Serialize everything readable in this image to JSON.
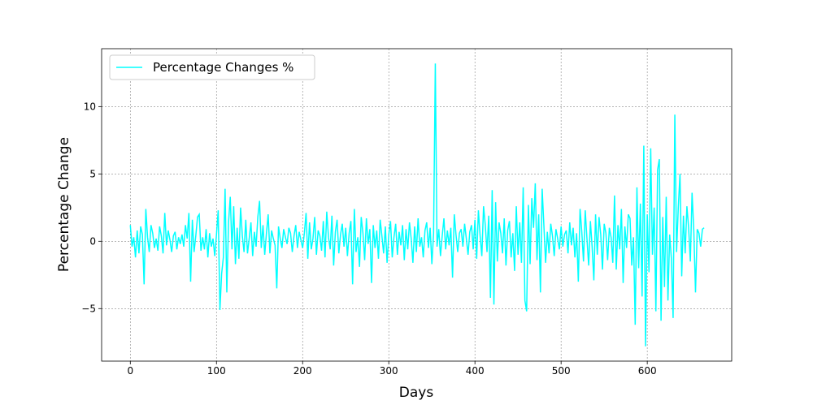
{
  "chart_data": {
    "type": "line",
    "x_label": "Days",
    "y_label": "Percentage Change",
    "legend": "upper left",
    "grid": true,
    "xlim": [
      -33.3,
      698
    ],
    "ylim": [
      -8.9,
      14.3
    ],
    "xticks": [
      0,
      100,
      200,
      300,
      400,
      500,
      600
    ],
    "yticks": [
      {
        "value": -5,
        "label": "−5"
      },
      0,
      5,
      10
    ],
    "x": [
      0,
      2,
      4,
      6,
      8,
      10,
      12,
      14,
      16,
      18,
      20,
      22,
      24,
      26,
      28,
      30,
      32,
      34,
      36,
      38,
      40,
      42,
      44,
      46,
      48,
      50,
      52,
      54,
      56,
      58,
      60,
      62,
      64,
      66,
      68,
      70,
      72,
      74,
      76,
      78,
      80,
      82,
      84,
      86,
      88,
      90,
      92,
      94,
      96,
      98,
      100,
      102,
      104,
      106,
      108,
      110,
      112,
      114,
      116,
      118,
      120,
      122,
      124,
      126,
      128,
      130,
      132,
      134,
      136,
      138,
      140,
      142,
      144,
      146,
      148,
      150,
      152,
      154,
      156,
      158,
      160,
      162,
      164,
      166,
      168,
      170,
      172,
      174,
      176,
      178,
      180,
      182,
      184,
      186,
      188,
      190,
      192,
      194,
      196,
      198,
      200,
      202,
      204,
      206,
      208,
      210,
      212,
      214,
      216,
      218,
      220,
      222,
      224,
      226,
      228,
      230,
      232,
      234,
      236,
      238,
      240,
      242,
      244,
      246,
      248,
      250,
      252,
      254,
      256,
      258,
      260,
      262,
      264,
      266,
      268,
      270,
      272,
      274,
      276,
      278,
      280,
      282,
      284,
      286,
      288,
      290,
      292,
      294,
      296,
      298,
      300,
      302,
      304,
      306,
      308,
      310,
      312,
      314,
      316,
      318,
      320,
      322,
      324,
      326,
      328,
      330,
      332,
      334,
      336,
      338,
      340,
      342,
      344,
      346,
      348,
      350,
      352,
      354,
      356,
      358,
      360,
      362,
      364,
      366,
      368,
      370,
      372,
      374,
      376,
      378,
      380,
      382,
      384,
      386,
      388,
      390,
      392,
      394,
      396,
      398,
      400,
      402,
      404,
      406,
      408,
      410,
      412,
      414,
      416,
      418,
      420,
      422,
      424,
      426,
      428,
      430,
      432,
      434,
      436,
      438,
      440,
      442,
      444,
      446,
      448,
      450,
      452,
      454,
      456,
      458,
      460,
      462,
      464,
      466,
      468,
      470,
      472,
      474,
      476,
      478,
      480,
      482,
      484,
      486,
      488,
      490,
      492,
      494,
      496,
      498,
      500,
      502,
      504,
      506,
      508,
      510,
      512,
      514,
      516,
      518,
      520,
      522,
      524,
      526,
      528,
      530,
      532,
      534,
      536,
      538,
      540,
      542,
      544,
      546,
      548,
      550,
      552,
      554,
      556,
      558,
      560,
      562,
      564,
      566,
      568,
      570,
      572,
      574,
      576,
      578,
      580,
      582,
      584,
      586,
      588,
      590,
      592,
      594,
      596,
      598,
      600,
      602,
      604,
      606,
      608,
      610,
      612,
      614,
      616,
      618,
      620,
      622,
      624,
      626,
      628,
      630,
      632,
      634,
      636,
      638,
      640,
      642,
      644,
      646,
      648,
      650,
      652,
      654,
      656,
      658,
      660,
      662,
      664,
      666
    ],
    "series": [
      {
        "name": "Percentage Changes %",
        "color": "#00ffff",
        "values": [
          1.2,
          -0.4,
          0.3,
          -1.2,
          0.8,
          -0.9,
          1.1,
          0.5,
          -3.2,
          2.4,
          0.3,
          -0.8,
          1.2,
          0.6,
          -0.5,
          0.2,
          -0.7,
          1.1,
          0.4,
          -0.9,
          2.1,
          -0.3,
          0.8,
          0.1,
          -0.8,
          0.4,
          0.7,
          -0.6,
          0.3,
          -0.2,
          0.5,
          -0.4,
          1.2,
          0.2,
          2.1,
          -3.0,
          1.6,
          -0.8,
          0.4,
          1.8,
          2.0,
          -0.7,
          0.3,
          -0.6,
          0.9,
          -1.2,
          0.6,
          -0.4,
          0.2,
          -1.1,
          0.5,
          2.3,
          -5.1,
          -2.4,
          -1.2,
          3.9,
          -3.8,
          1.4,
          3.3,
          -0.6,
          2.6,
          -1.7,
          1.0,
          -1.3,
          2.5,
          0.4,
          -0.8,
          1.6,
          -0.9,
          0.2,
          1.4,
          -1.1,
          0.7,
          -0.4,
          1.8,
          3.0,
          -0.5,
          1.2,
          -1.0,
          0.6,
          2.0,
          -0.9,
          0.8,
          0.2,
          -0.3,
          -3.5,
          1.1,
          0.2,
          -0.5,
          0.9,
          0.3,
          -0.2,
          1.0,
          0.6,
          -0.8,
          0.4,
          1.2,
          -0.5,
          0.7,
          0.1,
          -0.5,
          0.6,
          2.1,
          -1.3,
          1.4,
          -0.6,
          0.2,
          1.8,
          -1.0,
          0.8,
          0.4,
          -0.7,
          1.5,
          -1.2,
          2.2,
          0.3,
          -0.6,
          1.9,
          -1.8,
          0.7,
          1.6,
          -0.9,
          0.5,
          1.3,
          -0.4,
          1.0,
          -1.1,
          0.6,
          1.5,
          -3.2,
          2.4,
          -0.8,
          0.3,
          -1.9,
          1.8,
          0.6,
          -1.4,
          1.7,
          -0.2,
          0.9,
          -3.1,
          1.2,
          -0.5,
          0.8,
          -1.3,
          1.6,
          0.4,
          -0.9,
          1.1,
          -1.6,
          0.5,
          1.5,
          -1.2,
          0.3,
          1.3,
          -1.0,
          0.7,
          -0.3,
          1.2,
          -1.4,
          0.9,
          -0.6,
          1.4,
          0.2,
          -1.6,
          1.1,
          -0.8,
          1.7,
          -0.4,
          0.3,
          -1.2,
          0.8,
          1.4,
          -0.5,
          1.0,
          -1.7,
          0.6,
          13.2,
          -0.4,
          0.9,
          -1.1,
          0.4,
          1.7,
          -0.6,
          0.8,
          -0.3,
          1.0,
          -2.7,
          2.0,
          0.5,
          -0.8,
          0.6,
          0.9,
          -0.4,
          1.3,
          0.2,
          -1.0,
          0.7,
          1.2,
          -0.6,
          1.6,
          -1.3,
          2.3,
          0.4,
          -1.1,
          2.6,
          1.2,
          -0.8,
          1.9,
          -4.2,
          3.8,
          -4.7,
          2.9,
          -1.5,
          1.4,
          0.6,
          -0.9,
          1.7,
          -1.8,
          0.8,
          1.5,
          -1.2,
          0.6,
          -2.2,
          2.6,
          -1.0,
          1.4,
          -1.6,
          4.0,
          -4.4,
          -5.2,
          2.7,
          -1.7,
          3.2,
          1.0,
          4.3,
          -1.4,
          2.0,
          -3.8,
          3.9,
          1.2,
          -1.6,
          0.7,
          -0.9,
          1.3,
          0.4,
          -1.1,
          0.9,
          0.2,
          -0.6,
          1.1,
          -0.4,
          0.5,
          0.8,
          -0.9,
          1.4,
          -0.3,
          1.0,
          -1.2,
          0.6,
          -3.0,
          2.4,
          0.7,
          -1.5,
          2.3,
          0.2,
          -1.8,
          1.5,
          -0.4,
          -2.9,
          2.0,
          -1.0,
          1.8,
          0.5,
          -2.1,
          1.3,
          0.6,
          -1.4,
          1.0,
          0.3,
          -1.6,
          3.4,
          -2.1,
          1.2,
          -0.6,
          2.4,
          -3.1,
          1.1,
          -0.5,
          2.0,
          1.7,
          -1.8,
          0.3,
          -6.2,
          4.0,
          -2.0,
          2.8,
          -4.1,
          7.1,
          -7.8,
          2.0,
          -2.3,
          6.9,
          -1.0,
          2.5,
          -5.2,
          5.3,
          6.1,
          -5.9,
          1.8,
          -3.4,
          3.3,
          -4.4,
          0.5,
          -1.3,
          -5.7,
          9.4,
          -0.8,
          2.5,
          5.0,
          -2.6,
          1.9,
          -0.9,
          2.6,
          1.0,
          -1.5,
          3.6,
          0.8,
          -3.8,
          0.9,
          0.6,
          -0.4,
          0.9,
          1.0
        ]
      }
    ]
  }
}
